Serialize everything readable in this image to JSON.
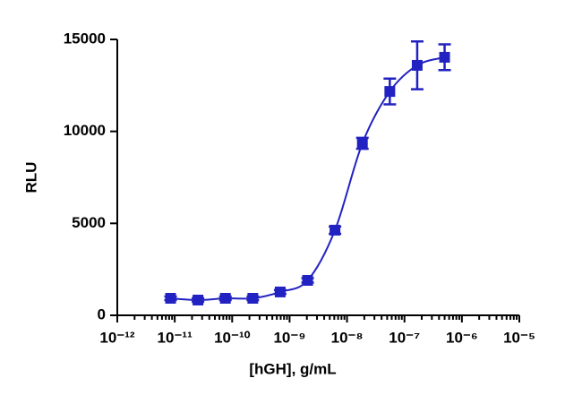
{
  "chart_data": {
    "type": "scatter",
    "xlabel": "[hGH], g/mL",
    "ylabel": "RLU",
    "xscale": "log",
    "color": "#2222c2",
    "x": [
      8.47e-12,
      2.54e-11,
      7.62e-11,
      2.29e-10,
      6.86e-10,
      2.06e-09,
      6.17e-09,
      1.85e-08,
      5.56e-08,
      1.667e-07,
      5e-07
    ],
    "values": [
      925,
      830,
      925,
      925,
      1270,
      1900,
      4630,
      9350,
      12170,
      13590,
      14030
    ],
    "errors": [
      100,
      100,
      100,
      100,
      100,
      120,
      200,
      300,
      700,
      1300,
      700
    ],
    "xlim": [
      1e-12,
      1e-05
    ],
    "xticks": [
      {
        "value": 1e-12,
        "label": "10⁻¹²"
      },
      {
        "value": 1e-11,
        "label": "10⁻¹¹"
      },
      {
        "value": 1e-10,
        "label": "10⁻¹⁰"
      },
      {
        "value": 1e-09,
        "label": "10⁻⁹"
      },
      {
        "value": 1e-08,
        "label": "10⁻⁸"
      },
      {
        "value": 1e-07,
        "label": "10⁻⁷"
      },
      {
        "value": 1e-06,
        "label": "10⁻⁶"
      },
      {
        "value": 1e-05,
        "label": "10⁻⁵"
      }
    ],
    "ylim": [
      0,
      15000
    ],
    "yticks": [
      0,
      5000,
      10000,
      15000
    ]
  }
}
